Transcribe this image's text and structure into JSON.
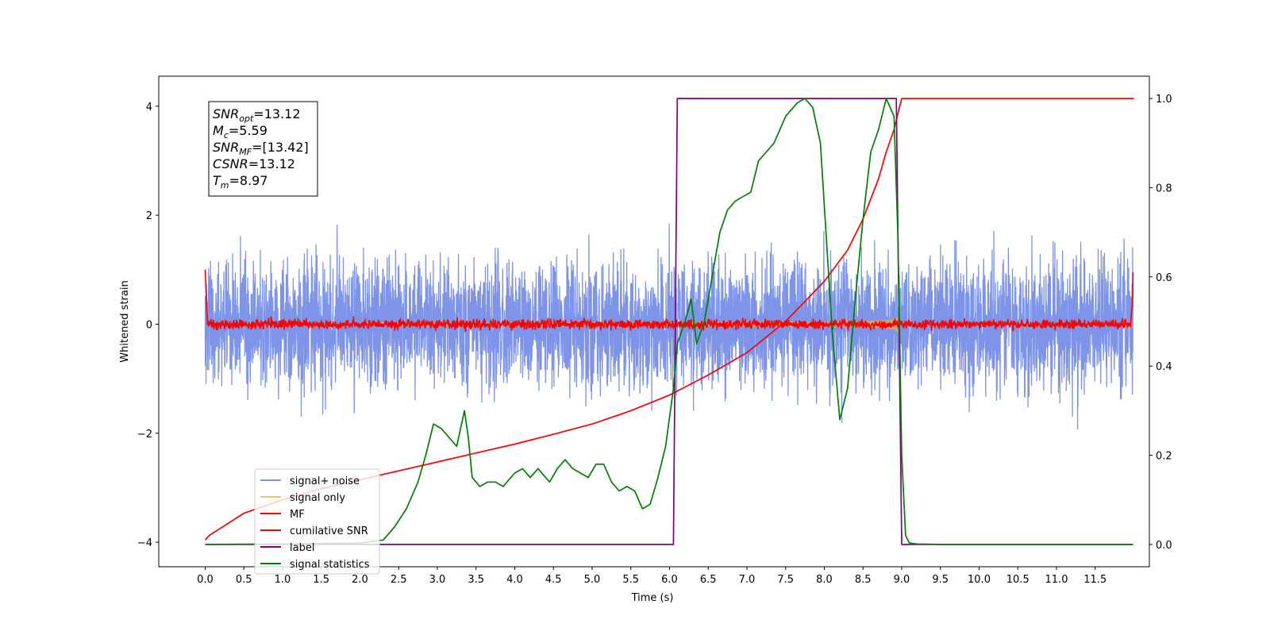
{
  "chart_data": {
    "type": "line",
    "xlabel": "Time (s)",
    "ylabel": "Whitened strain",
    "xlim": [
      -0.6,
      12.2
    ],
    "ylim_left": [
      -4.45,
      4.55
    ],
    "ylim_right": [
      -0.05,
      1.05
    ],
    "x_ticks": [
      "0.0",
      "0.5",
      "1.0",
      "1.5",
      "2.0",
      "2.5",
      "3.0",
      "3.5",
      "4.0",
      "4.5",
      "5.0",
      "5.5",
      "6.0",
      "6.5",
      "7.0",
      "7.5",
      "8.0",
      "8.5",
      "9.0",
      "9.5",
      "10.0",
      "10.5",
      "11.0",
      "11.5"
    ],
    "y_ticks_left": [
      "−4",
      "−2",
      "0",
      "2",
      "4"
    ],
    "y_ticks_right": [
      "0.0",
      "0.2",
      "0.4",
      "0.6",
      "0.8",
      "1.0"
    ],
    "annotation": {
      "lines": [
        {
          "base": "SNR",
          "sub": "opt",
          "value": "=13.12"
        },
        {
          "base": "M",
          "sub": "c",
          "value": "=5.59"
        },
        {
          "base": "SNR",
          "sub": "MF",
          "value": "=[13.42]"
        },
        {
          "base": "CSNR",
          "sub": "",
          "value": "=13.12"
        },
        {
          "base": "T",
          "sub": "m",
          "value": "=8.97"
        }
      ]
    },
    "legend": {
      "placement": "lower-left",
      "entries": [
        "signal+ noise",
        "signal only",
        "MF",
        "cumilative SNR",
        "label",
        "signal statistics"
      ]
    },
    "series": [
      {
        "name": "signal+ noise",
        "axis": "left",
        "color": "#7a92e8",
        "kind": "noise",
        "x_range": [
          0.0,
          11.99
        ],
        "spread": 2.4
      },
      {
        "name": "signal only",
        "axis": "left",
        "color": "#f5c26b",
        "kind": "chirp",
        "x_range": [
          0.0,
          8.97
        ]
      },
      {
        "name": "MF",
        "axis": "left",
        "color": "#ff0000",
        "kind": "mf",
        "x_range": [
          0.0,
          11.99
        ]
      },
      {
        "name": "cumilative SNR",
        "axis": "right",
        "color": "#ff0000",
        "x": [
          0.0,
          0.05,
          0.5,
          1.0,
          1.5,
          2.0,
          2.5,
          3.0,
          3.5,
          4.0,
          4.5,
          5.0,
          5.5,
          6.0,
          6.5,
          7.0,
          7.5,
          8.0,
          8.3,
          8.5,
          8.7,
          8.8,
          8.9,
          8.97,
          9.0,
          12.0
        ],
        "y": [
          0.01,
          0.02,
          0.07,
          0.1,
          0.125,
          0.145,
          0.165,
          0.185,
          0.205,
          0.225,
          0.247,
          0.27,
          0.3,
          0.335,
          0.38,
          0.43,
          0.5,
          0.59,
          0.66,
          0.73,
          0.82,
          0.88,
          0.93,
          0.98,
          1.0,
          1.0
        ]
      },
      {
        "name": "label",
        "axis": "right",
        "color": "#800080",
        "x": [
          0.0,
          6.05,
          6.1,
          8.93,
          9.0,
          11.99
        ],
        "y": [
          0.0,
          0.0,
          1.0,
          1.0,
          0.0,
          0.0
        ]
      },
      {
        "name": "signal statistics",
        "axis": "right",
        "color": "#008000",
        "x": [
          0.0,
          1.0,
          2.0,
          2.3,
          2.45,
          2.6,
          2.75,
          2.85,
          2.95,
          3.05,
          3.15,
          3.25,
          3.35,
          3.4,
          3.45,
          3.55,
          3.65,
          3.75,
          3.85,
          3.95,
          4.0,
          4.1,
          4.2,
          4.3,
          4.45,
          4.55,
          4.65,
          4.75,
          4.85,
          4.95,
          5.05,
          5.15,
          5.25,
          5.35,
          5.45,
          5.55,
          5.65,
          5.75,
          5.85,
          5.95,
          6.05,
          6.1,
          6.2,
          6.28,
          6.35,
          6.45,
          6.55,
          6.65,
          6.75,
          6.85,
          6.95,
          7.05,
          7.15,
          7.25,
          7.35,
          7.5,
          7.65,
          7.75,
          7.85,
          7.95,
          8.05,
          8.1,
          8.2,
          8.3,
          8.4,
          8.5,
          8.6,
          8.7,
          8.8,
          8.9,
          8.95,
          9.0,
          9.05,
          9.1,
          9.2,
          9.5,
          11.99
        ],
        "y": [
          0.0,
          0.001,
          0.003,
          0.01,
          0.04,
          0.08,
          0.14,
          0.2,
          0.27,
          0.26,
          0.24,
          0.22,
          0.3,
          0.24,
          0.15,
          0.13,
          0.14,
          0.14,
          0.13,
          0.15,
          0.16,
          0.17,
          0.15,
          0.17,
          0.14,
          0.17,
          0.19,
          0.17,
          0.16,
          0.15,
          0.18,
          0.18,
          0.14,
          0.12,
          0.13,
          0.12,
          0.08,
          0.09,
          0.15,
          0.22,
          0.35,
          0.45,
          0.5,
          0.55,
          0.45,
          0.5,
          0.6,
          0.7,
          0.75,
          0.77,
          0.78,
          0.79,
          0.86,
          0.88,
          0.9,
          0.96,
          0.99,
          1.0,
          0.98,
          0.9,
          0.62,
          0.48,
          0.28,
          0.35,
          0.55,
          0.73,
          0.88,
          0.93,
          1.0,
          0.96,
          0.7,
          0.2,
          0.02,
          0.003,
          0.001,
          0.0,
          0.0
        ]
      }
    ]
  }
}
